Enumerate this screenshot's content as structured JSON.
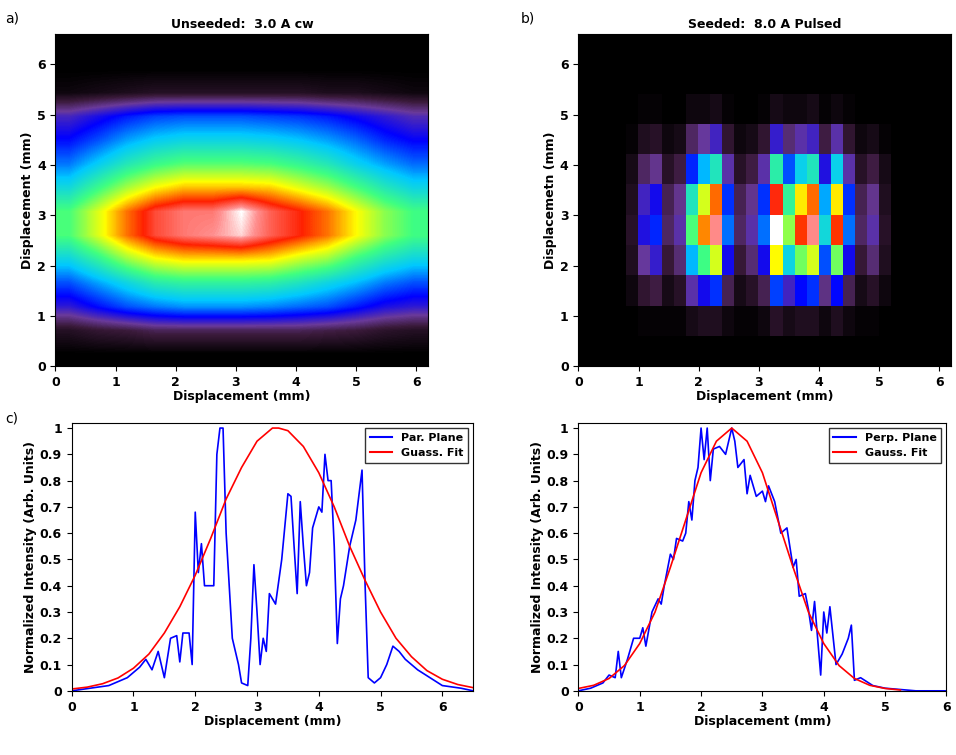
{
  "chart_data": [
    {
      "type": "heatmap",
      "title": "Unseeded:  3.0 A cw",
      "annotations": [
        "a)"
      ],
      "xlabel": "Displacement (mm)",
      "ylabel": "Displacement (mm)",
      "xlim": [
        0,
        6.2
      ],
      "ylim": [
        0,
        6.6
      ],
      "xticks": [
        0,
        1,
        2,
        3,
        4,
        5,
        6
      ],
      "yticks": [
        0,
        1,
        2,
        3,
        4,
        5,
        6
      ],
      "cells": [
        [
          0,
          0,
          0,
          0,
          0,
          0,
          0,
          0,
          0,
          0,
          0,
          0,
          0
        ],
        [
          0.05,
          0.07,
          0.08,
          0.1,
          0.1,
          0.1,
          0.1,
          0.1,
          0.1,
          0.09,
          0.08,
          0.06,
          0.05
        ],
        [
          0.2,
          0.25,
          0.3,
          0.33,
          0.35,
          0.35,
          0.35,
          0.34,
          0.32,
          0.3,
          0.26,
          0.22,
          0.2
        ],
        [
          0.3,
          0.36,
          0.42,
          0.48,
          0.5,
          0.5,
          0.5,
          0.49,
          0.46,
          0.42,
          0.38,
          0.33,
          0.3
        ],
        [
          0.42,
          0.5,
          0.6,
          0.67,
          0.7,
          0.7,
          0.7,
          0.69,
          0.64,
          0.6,
          0.52,
          0.46,
          0.42
        ],
        [
          0.54,
          0.65,
          0.77,
          0.86,
          0.9,
          0.92,
          0.95,
          0.88,
          0.83,
          0.77,
          0.68,
          0.59,
          0.53
        ],
        [
          0.54,
          0.65,
          0.77,
          0.86,
          0.9,
          0.9,
          0.97,
          0.88,
          0.83,
          0.77,
          0.68,
          0.59,
          0.53
        ],
        [
          0.43,
          0.52,
          0.61,
          0.68,
          0.72,
          0.72,
          0.72,
          0.71,
          0.66,
          0.61,
          0.54,
          0.47,
          0.42
        ],
        [
          0.33,
          0.4,
          0.47,
          0.52,
          0.55,
          0.55,
          0.55,
          0.54,
          0.51,
          0.47,
          0.41,
          0.36,
          0.32
        ],
        [
          0.25,
          0.3,
          0.36,
          0.4,
          0.42,
          0.42,
          0.42,
          0.41,
          0.39,
          0.36,
          0.32,
          0.27,
          0.24
        ],
        [
          0.18,
          0.22,
          0.26,
          0.29,
          0.3,
          0.3,
          0.3,
          0.29,
          0.28,
          0.26,
          0.23,
          0.2,
          0.17
        ],
        [
          0.02,
          0.03,
          0.04,
          0.05,
          0.05,
          0.05,
          0.05,
          0.05,
          0.05,
          0.04,
          0.04,
          0.03,
          0.02
        ],
        [
          0,
          0,
          0,
          0,
          0,
          0,
          0,
          0,
          0,
          0,
          0,
          0,
          0
        ],
        [
          0,
          0,
          0,
          0,
          0,
          0,
          0,
          0,
          0,
          0,
          0,
          0,
          0
        ]
      ]
    },
    {
      "type": "heatmap",
      "title": "Seeded:  8.0 A Pulsed",
      "annotations": [
        "b)"
      ],
      "xlabel": "Displacement (mm)",
      "ylabel": "Displacemetn (mm)",
      "xlim": [
        0,
        6.2
      ],
      "ylim": [
        0,
        6.6
      ],
      "xticks": [
        0,
        1,
        2,
        3,
        4,
        5,
        6
      ],
      "yticks": [
        0,
        1,
        2,
        3,
        4,
        5,
        6
      ],
      "cells": [
        [
          0,
          0,
          0,
          0,
          0,
          0,
          0,
          0,
          0,
          0,
          0,
          0,
          0,
          0,
          0,
          0,
          0,
          0,
          0,
          0,
          0,
          0,
          0,
          0,
          0,
          0,
          0,
          0,
          0,
          0,
          0
        ],
        [
          0,
          0,
          0,
          0,
          0,
          0.01,
          0.01,
          0.01,
          0.01,
          0.03,
          0.04,
          0.04,
          0.02,
          0.01,
          0.01,
          0.02,
          0.05,
          0.03,
          0.04,
          0.04,
          0.02,
          0.04,
          0.02,
          0.01,
          0.01,
          0,
          0,
          0,
          0,
          0,
          0
        ],
        [
          0,
          0,
          0,
          0,
          0.02,
          0.06,
          0.08,
          0.03,
          0.05,
          0.15,
          0.21,
          0.26,
          0.09,
          0.03,
          0.05,
          0.09,
          0.27,
          0.17,
          0.23,
          0.26,
          0.12,
          0.23,
          0.09,
          0.03,
          0.05,
          0.02,
          0,
          0,
          0,
          0,
          0
        ],
        [
          0,
          0,
          0,
          0,
          0.04,
          0.14,
          0.18,
          0.07,
          0.11,
          0.35,
          0.49,
          0.6,
          0.21,
          0.07,
          0.11,
          0.21,
          0.63,
          0.39,
          0.53,
          0.6,
          0.28,
          0.53,
          0.21,
          0.07,
          0.11,
          0.04,
          0,
          0,
          0,
          0,
          0
        ],
        [
          0,
          0,
          0,
          0,
          0.05,
          0.2,
          0.25,
          0.1,
          0.15,
          0.5,
          0.7,
          0.85,
          0.3,
          0.1,
          0.15,
          0.3,
          0.9,
          0.55,
          0.75,
          0.85,
          0.4,
          0.75,
          0.3,
          0.1,
          0.15,
          0.05,
          0,
          0,
          0,
          0,
          0
        ],
        [
          0,
          0,
          0,
          0,
          0.04,
          0.17,
          0.21,
          0.09,
          0.13,
          0.43,
          0.6,
          0.72,
          0.26,
          0.09,
          0.13,
          0.26,
          0.77,
          0.47,
          0.64,
          0.72,
          0.34,
          0.64,
          0.26,
          0.09,
          0.13,
          0.04,
          0,
          0,
          0,
          0,
          0
        ],
        [
          0,
          0,
          0,
          0,
          0.03,
          0.1,
          0.13,
          0.05,
          0.08,
          0.25,
          0.35,
          0.43,
          0.15,
          0.05,
          0.08,
          0.15,
          0.45,
          0.28,
          0.38,
          0.43,
          0.2,
          0.38,
          0.15,
          0.05,
          0.08,
          0.03,
          0,
          0,
          0,
          0,
          0
        ],
        [
          0,
          0,
          0,
          0,
          0.01,
          0.04,
          0.05,
          0.02,
          0.03,
          0.1,
          0.14,
          0.17,
          0.06,
          0.02,
          0.03,
          0.06,
          0.18,
          0.11,
          0.15,
          0.17,
          0.08,
          0.15,
          0.06,
          0.02,
          0.03,
          0.01,
          0,
          0,
          0,
          0,
          0
        ],
        [
          0,
          0,
          0,
          0,
          0,
          0.01,
          0.01,
          0,
          0,
          0.02,
          0.02,
          0.03,
          0.01,
          0,
          0,
          0.01,
          0.03,
          0.02,
          0.02,
          0.03,
          0.01,
          0.02,
          0.01,
          0,
          0,
          0,
          0,
          0,
          0,
          0,
          0
        ],
        [
          0,
          0,
          0,
          0,
          0,
          0,
          0,
          0,
          0,
          0,
          0,
          0,
          0,
          0,
          0,
          0,
          0,
          0,
          0,
          0,
          0,
          0,
          0,
          0,
          0,
          0,
          0,
          0,
          0,
          0,
          0
        ],
        [
          0,
          0,
          0,
          0,
          0,
          0,
          0,
          0,
          0,
          0,
          0,
          0,
          0,
          0,
          0,
          0,
          0,
          0,
          0,
          0,
          0,
          0,
          0,
          0,
          0,
          0,
          0,
          0,
          0,
          0,
          0
        ]
      ]
    },
    {
      "type": "line",
      "annotations": [
        "c)"
      ],
      "xlabel": "Displacement (mm)",
      "ylabel": "Normalized Intensity (Arb. Units)",
      "xlim": [
        0,
        6.5
      ],
      "ylim": [
        0,
        1.02
      ],
      "xticks": [
        0,
        1,
        2,
        3,
        4,
        5,
        6
      ],
      "yticks": [
        0,
        0.1,
        0.2,
        0.3,
        0.4,
        0.5,
        0.6,
        0.7,
        0.8,
        0.9,
        1
      ],
      "legend": "upper right",
      "series": [
        {
          "name": "Par. Plane",
          "color": "#0000ff",
          "x": [
            0,
            0.3,
            0.6,
            0.9,
            1.1,
            1.2,
            1.3,
            1.4,
            1.5,
            1.6,
            1.7,
            1.75,
            1.8,
            1.9,
            1.95,
            2.0,
            2.05,
            2.1,
            2.15,
            2.2,
            2.3,
            2.35,
            2.4,
            2.45,
            2.5,
            2.55,
            2.6,
            2.7,
            2.75,
            2.85,
            2.9,
            2.95,
            3.0,
            3.05,
            3.1,
            3.15,
            3.2,
            3.3,
            3.4,
            3.5,
            3.55,
            3.6,
            3.65,
            3.7,
            3.75,
            3.8,
            3.85,
            3.9,
            4.0,
            4.05,
            4.1,
            4.15,
            4.2,
            4.25,
            4.3,
            4.35,
            4.4,
            4.5,
            4.6,
            4.7,
            4.75,
            4.8,
            4.9,
            5.0,
            5.1,
            5.2,
            5.3,
            5.4,
            5.6,
            5.8,
            6.0,
            6.3,
            6.5
          ],
          "values": [
            0,
            0.01,
            0.02,
            0.05,
            0.09,
            0.12,
            0.08,
            0.15,
            0.05,
            0.2,
            0.21,
            0.11,
            0.22,
            0.22,
            0.1,
            0.68,
            0.45,
            0.56,
            0.4,
            0.4,
            0.4,
            0.9,
            1.0,
            1.0,
            0.6,
            0.4,
            0.2,
            0.1,
            0.03,
            0.02,
            0.2,
            0.48,
            0.3,
            0.1,
            0.2,
            0.15,
            0.37,
            0.33,
            0.5,
            0.75,
            0.74,
            0.55,
            0.37,
            0.72,
            0.55,
            0.4,
            0.45,
            0.62,
            0.7,
            0.68,
            0.9,
            0.8,
            0.8,
            0.55,
            0.18,
            0.35,
            0.4,
            0.55,
            0.65,
            0.84,
            0.4,
            0.05,
            0.03,
            0.05,
            0.1,
            0.17,
            0.15,
            0.12,
            0.08,
            0.05,
            0.02,
            0.01,
            0
          ]
        },
        {
          "name": "Guass. Fit",
          "color": "#ff0000",
          "x": [
            0,
            0.25,
            0.5,
            0.75,
            1.0,
            1.25,
            1.5,
            1.75,
            2.0,
            2.25,
            2.5,
            2.75,
            3.0,
            3.25,
            3.35,
            3.5,
            3.75,
            4.0,
            4.25,
            4.5,
            4.75,
            5.0,
            5.25,
            5.5,
            5.75,
            6.0,
            6.25,
            6.5
          ],
          "values": [
            0.007,
            0.014,
            0.027,
            0.049,
            0.086,
            0.14,
            0.22,
            0.32,
            0.44,
            0.58,
            0.73,
            0.85,
            0.95,
            1.0,
            1.0,
            0.99,
            0.93,
            0.83,
            0.7,
            0.55,
            0.42,
            0.3,
            0.2,
            0.13,
            0.077,
            0.044,
            0.024,
            0.012
          ]
        }
      ]
    },
    {
      "type": "line",
      "xlabel": "Displacement (mm)",
      "ylabel": "Normalized Intensity (Arb. Units)",
      "xlim": [
        0,
        6
      ],
      "ylim": [
        0,
        1.02
      ],
      "xticks": [
        0,
        1,
        2,
        3,
        4,
        5,
        6
      ],
      "yticks": [
        0,
        0.1,
        0.2,
        0.3,
        0.4,
        0.5,
        0.6,
        0.7,
        0.8,
        0.9,
        1
      ],
      "legend": "upper right",
      "series": [
        {
          "name": "Perp. Plane",
          "color": "#0000ff",
          "x": [
            0,
            0.2,
            0.4,
            0.5,
            0.6,
            0.65,
            0.7,
            0.8,
            0.9,
            1.0,
            1.05,
            1.1,
            1.2,
            1.3,
            1.35,
            1.4,
            1.5,
            1.55,
            1.6,
            1.7,
            1.75,
            1.8,
            1.85,
            1.9,
            1.95,
            2.0,
            2.05,
            2.1,
            2.15,
            2.2,
            2.3,
            2.4,
            2.5,
            2.55,
            2.6,
            2.7,
            2.75,
            2.8,
            2.9,
            3.0,
            3.05,
            3.1,
            3.2,
            3.3,
            3.4,
            3.5,
            3.55,
            3.6,
            3.7,
            3.75,
            3.8,
            3.85,
            3.9,
            3.95,
            4.0,
            4.05,
            4.1,
            4.2,
            4.3,
            4.4,
            4.45,
            4.5,
            4.6,
            4.8,
            5.0,
            5.5,
            6.0
          ],
          "values": [
            0,
            0.01,
            0.03,
            0.06,
            0.05,
            0.15,
            0.05,
            0.12,
            0.2,
            0.2,
            0.24,
            0.17,
            0.3,
            0.35,
            0.33,
            0.4,
            0.52,
            0.5,
            0.58,
            0.57,
            0.6,
            0.72,
            0.65,
            0.8,
            0.85,
            1.0,
            0.88,
            1.0,
            0.8,
            0.92,
            0.93,
            0.9,
            1.0,
            0.95,
            0.85,
            0.88,
            0.75,
            0.82,
            0.74,
            0.76,
            0.72,
            0.78,
            0.72,
            0.6,
            0.62,
            0.47,
            0.5,
            0.36,
            0.37,
            0.31,
            0.23,
            0.34,
            0.2,
            0.06,
            0.3,
            0.22,
            0.32,
            0.1,
            0.14,
            0.2,
            0.25,
            0.04,
            0.05,
            0.02,
            0.01,
            0,
            0
          ]
        },
        {
          "name": "Gauss. Fit",
          "color": "#ff0000",
          "x": [
            0,
            0.25,
            0.5,
            0.75,
            1.0,
            1.25,
            1.5,
            1.75,
            2.0,
            2.25,
            2.5,
            2.75,
            3.0,
            3.25,
            3.5,
            3.75,
            4.0,
            4.25,
            4.5,
            4.75,
            5.0,
            5.25
          ],
          "values": [
            0.009,
            0.021,
            0.047,
            0.096,
            0.18,
            0.3,
            0.47,
            0.65,
            0.83,
            0.95,
            1.0,
            0.95,
            0.83,
            0.65,
            0.47,
            0.3,
            0.18,
            0.096,
            0.047,
            0.021,
            0.009,
            0.003
          ]
        }
      ]
    }
  ]
}
